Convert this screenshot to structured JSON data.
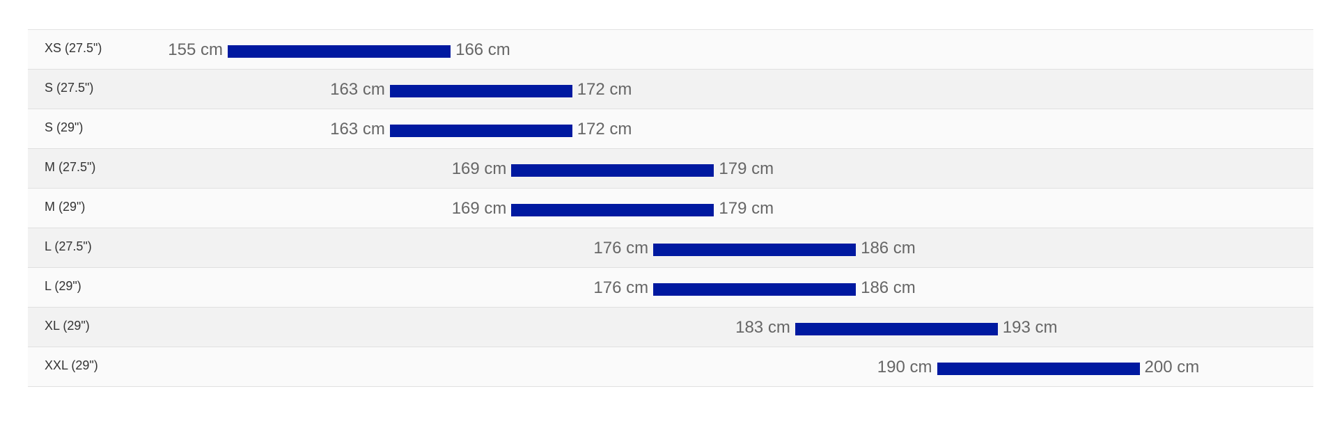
{
  "chart_data": {
    "type": "bar",
    "orientation": "horizontal-range",
    "unit": "cm",
    "bar_color": "#0019a0",
    "categories": [
      "XS (27.5\")",
      "S (27.5\")",
      "S (29\")",
      "M (27.5\")",
      "M (29\")",
      "L (27.5\")",
      "L (29\")",
      "XL (29\")",
      "XXL (29\")"
    ],
    "rows": [
      {
        "label": "XS (27.5\")",
        "min": 155,
        "max": 166,
        "min_label": "155 cm",
        "max_label": "166 cm"
      },
      {
        "label": "S (27.5\")",
        "min": 163,
        "max": 172,
        "min_label": "163 cm",
        "max_label": "172 cm"
      },
      {
        "label": "S (29\")",
        "min": 163,
        "max": 172,
        "min_label": "163 cm",
        "max_label": "172 cm"
      },
      {
        "label": "M (27.5\")",
        "min": 169,
        "max": 179,
        "min_label": "169 cm",
        "max_label": "179 cm"
      },
      {
        "label": "M (29\")",
        "min": 169,
        "max": 179,
        "min_label": "169 cm",
        "max_label": "179 cm"
      },
      {
        "label": "L (27.5\")",
        "min": 176,
        "max": 186,
        "min_label": "176 cm",
        "max_label": "186 cm"
      },
      {
        "label": "L (29\")",
        "min": 176,
        "max": 186,
        "min_label": "176 cm",
        "max_label": "186 cm"
      },
      {
        "label": "XL (29\")",
        "min": 183,
        "max": 193,
        "min_label": "183 cm",
        "max_label": "193 cm"
      },
      {
        "label": "XXL (29\")",
        "min": 190,
        "max": 200,
        "min_label": "190 cm",
        "max_label": "200 cm"
      }
    ],
    "title": "",
    "xlabel": "",
    "ylabel": "",
    "grid": false
  }
}
